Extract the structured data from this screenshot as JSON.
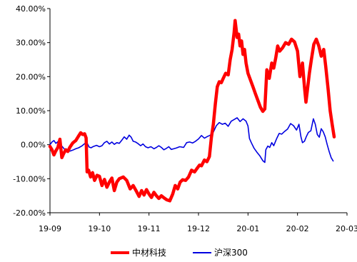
{
  "chart_data": {
    "type": "line",
    "yaxis": {
      "min": -20,
      "max": 40,
      "ticks": [
        40,
        30,
        20,
        10,
        0,
        -10,
        -20
      ],
      "tick_labels": [
        "40.00%",
        "30.00%",
        "20.00%",
        "10.00%",
        "0.00%",
        "-10.00%",
        "-20.00%"
      ]
    },
    "xaxis": {
      "ticks": [
        0,
        1,
        2,
        3,
        4,
        5,
        6
      ],
      "tick_labels": [
        "19-09",
        "19-10",
        "19-11",
        "19-12",
        "20-01",
        "20-02",
        "20-03"
      ]
    },
    "legend": {
      "position": "bottom-center"
    },
    "colors": {
      "series_1": "#ff0000",
      "series_2": "#0000e0",
      "axis": "#000000"
    },
    "series": [
      {
        "name": "中材科技",
        "color": "#ff0000",
        "points": [
          [
            0.0,
            -0.5
          ],
          [
            0.04,
            -1.5
          ],
          [
            0.08,
            -3.0
          ],
          [
            0.12,
            -1.8
          ],
          [
            0.16,
            -0.8
          ],
          [
            0.2,
            1.6
          ],
          [
            0.24,
            -3.8
          ],
          [
            0.28,
            -2.5
          ],
          [
            0.32,
            -1.5
          ],
          [
            0.36,
            -2.0
          ],
          [
            0.4,
            -0.8
          ],
          [
            0.46,
            0.5
          ],
          [
            0.52,
            1.2
          ],
          [
            0.58,
            2.6
          ],
          [
            0.62,
            3.5
          ],
          [
            0.66,
            3.0
          ],
          [
            0.7,
            3.2
          ],
          [
            0.73,
            2.0
          ],
          [
            0.75,
            -8.0
          ],
          [
            0.78,
            -7.5
          ],
          [
            0.82,
            -9.5
          ],
          [
            0.86,
            -8.2
          ],
          [
            0.9,
            -10.5
          ],
          [
            0.95,
            -9.0
          ],
          [
            1.0,
            -9.3
          ],
          [
            1.05,
            -12.0
          ],
          [
            1.1,
            -10.2
          ],
          [
            1.15,
            -12.5
          ],
          [
            1.2,
            -11.0
          ],
          [
            1.25,
            -9.8
          ],
          [
            1.3,
            -13.5
          ],
          [
            1.35,
            -11.0
          ],
          [
            1.4,
            -10.0
          ],
          [
            1.48,
            -9.5
          ],
          [
            1.55,
            -10.5
          ],
          [
            1.62,
            -13.0
          ],
          [
            1.68,
            -12.0
          ],
          [
            1.75,
            -13.8
          ],
          [
            1.8,
            -15.2
          ],
          [
            1.85,
            -13.5
          ],
          [
            1.9,
            -14.8
          ],
          [
            1.95,
            -13.2
          ],
          [
            2.0,
            -14.5
          ],
          [
            2.05,
            -15.5
          ],
          [
            2.1,
            -14.0
          ],
          [
            2.15,
            -15.0
          ],
          [
            2.2,
            -15.8
          ],
          [
            2.25,
            -15.0
          ],
          [
            2.3,
            -15.6
          ],
          [
            2.36,
            -16.2
          ],
          [
            2.42,
            -16.5
          ],
          [
            2.48,
            -14.5
          ],
          [
            2.53,
            -12.0
          ],
          [
            2.58,
            -13.0
          ],
          [
            2.63,
            -11.0
          ],
          [
            2.68,
            -10.3
          ],
          [
            2.74,
            -10.5
          ],
          [
            2.8,
            -9.5
          ],
          [
            2.86,
            -7.5
          ],
          [
            2.92,
            -8.0
          ],
          [
            2.97,
            -7.0
          ],
          [
            3.02,
            -6.0
          ],
          [
            3.06,
            -6.2
          ],
          [
            3.12,
            -4.5
          ],
          [
            3.17,
            -5.0
          ],
          [
            3.22,
            -3.5
          ],
          [
            3.26,
            2.0
          ],
          [
            3.3,
            6.0
          ],
          [
            3.34,
            12.0
          ],
          [
            3.38,
            17.0
          ],
          [
            3.42,
            18.5
          ],
          [
            3.46,
            18.2
          ],
          [
            3.5,
            19.5
          ],
          [
            3.55,
            21.0
          ],
          [
            3.6,
            20.5
          ],
          [
            3.64,
            25.0
          ],
          [
            3.68,
            28.0
          ],
          [
            3.72,
            33.0
          ],
          [
            3.74,
            36.5
          ],
          [
            3.76,
            34.0
          ],
          [
            3.78,
            31.5
          ],
          [
            3.81,
            32.5
          ],
          [
            3.84,
            29.0
          ],
          [
            3.87,
            30.5
          ],
          [
            3.9,
            26.5
          ],
          [
            3.93,
            28.0
          ],
          [
            3.96,
            24.0
          ],
          [
            4.0,
            21.0
          ],
          [
            4.05,
            19.0
          ],
          [
            4.1,
            17.0
          ],
          [
            4.15,
            15.0
          ],
          [
            4.2,
            13.0
          ],
          [
            4.25,
            11.0
          ],
          [
            4.3,
            9.8
          ],
          [
            4.34,
            10.5
          ],
          [
            4.38,
            22.0
          ],
          [
            4.43,
            19.5
          ],
          [
            4.48,
            24.0
          ],
          [
            4.52,
            22.5
          ],
          [
            4.56,
            25.5
          ],
          [
            4.6,
            29.0
          ],
          [
            4.64,
            27.5
          ],
          [
            4.7,
            28.5
          ],
          [
            4.76,
            30.0
          ],
          [
            4.82,
            29.5
          ],
          [
            4.88,
            31.0
          ],
          [
            4.94,
            30.2
          ],
          [
            5.0,
            27.5
          ],
          [
            5.05,
            20.0
          ],
          [
            5.1,
            24.0
          ],
          [
            5.14,
            17.0
          ],
          [
            5.17,
            12.5
          ],
          [
            5.2,
            16.0
          ],
          [
            5.24,
            21.0
          ],
          [
            5.28,
            25.0
          ],
          [
            5.33,
            29.5
          ],
          [
            5.38,
            31.0
          ],
          [
            5.43,
            29.0
          ],
          [
            5.48,
            26.0
          ],
          [
            5.53,
            28.0
          ],
          [
            5.57,
            23.0
          ],
          [
            5.62,
            16.0
          ],
          [
            5.66,
            10.0
          ],
          [
            5.7,
            6.0
          ],
          [
            5.74,
            2.3
          ]
        ]
      },
      {
        "name": "沪深300",
        "color": "#0000e0",
        "points": [
          [
            0.0,
            0.0
          ],
          [
            0.04,
            0.8
          ],
          [
            0.08,
            1.2
          ],
          [
            0.12,
            0.4
          ],
          [
            0.16,
            0.9
          ],
          [
            0.2,
            0.0
          ],
          [
            0.24,
            -0.4
          ],
          [
            0.28,
            -1.1
          ],
          [
            0.32,
            -1.7
          ],
          [
            0.36,
            -1.4
          ],
          [
            0.4,
            -1.9
          ],
          [
            0.46,
            -1.6
          ],
          [
            0.52,
            -1.2
          ],
          [
            0.58,
            -0.9
          ],
          [
            0.64,
            -0.4
          ],
          [
            0.7,
            0.3
          ],
          [
            0.75,
            0.5
          ],
          [
            0.79,
            -0.7
          ],
          [
            0.83,
            -0.9
          ],
          [
            0.88,
            -0.5
          ],
          [
            0.94,
            -0.2
          ],
          [
            1.0,
            -0.6
          ],
          [
            1.05,
            -0.3
          ],
          [
            1.1,
            0.6
          ],
          [
            1.15,
            1.0
          ],
          [
            1.2,
            0.2
          ],
          [
            1.25,
            0.8
          ],
          [
            1.3,
            0.1
          ],
          [
            1.35,
            0.6
          ],
          [
            1.4,
            0.4
          ],
          [
            1.45,
            1.3
          ],
          [
            1.5,
            2.3
          ],
          [
            1.55,
            1.6
          ],
          [
            1.6,
            2.8
          ],
          [
            1.64,
            2.2
          ],
          [
            1.68,
            1.0
          ],
          [
            1.73,
            0.8
          ],
          [
            1.78,
            0.3
          ],
          [
            1.83,
            -0.3
          ],
          [
            1.88,
            0.2
          ],
          [
            1.93,
            -0.6
          ],
          [
            1.98,
            -0.9
          ],
          [
            2.04,
            -0.6
          ],
          [
            2.1,
            -1.2
          ],
          [
            2.15,
            -0.8
          ],
          [
            2.2,
            -0.3
          ],
          [
            2.25,
            -0.8
          ],
          [
            2.3,
            -1.5
          ],
          [
            2.35,
            -1.1
          ],
          [
            2.4,
            -0.6
          ],
          [
            2.45,
            -1.4
          ],
          [
            2.5,
            -1.2
          ],
          [
            2.55,
            -1.0
          ],
          [
            2.62,
            -0.6
          ],
          [
            2.7,
            -0.8
          ],
          [
            2.76,
            0.6
          ],
          [
            2.82,
            0.8
          ],
          [
            2.88,
            0.5
          ],
          [
            2.94,
            1.0
          ],
          [
            3.0,
            1.7
          ],
          [
            3.06,
            2.7
          ],
          [
            3.12,
            1.9
          ],
          [
            3.18,
            2.4
          ],
          [
            3.24,
            2.8
          ],
          [
            3.3,
            3.7
          ],
          [
            3.36,
            5.6
          ],
          [
            3.42,
            6.5
          ],
          [
            3.48,
            6.0
          ],
          [
            3.54,
            6.3
          ],
          [
            3.6,
            5.4
          ],
          [
            3.66,
            6.9
          ],
          [
            3.72,
            7.4
          ],
          [
            3.78,
            7.9
          ],
          [
            3.84,
            6.8
          ],
          [
            3.9,
            7.6
          ],
          [
            3.96,
            6.9
          ],
          [
            4.0,
            5.5
          ],
          [
            4.03,
            1.8
          ],
          [
            4.07,
            0.5
          ],
          [
            4.12,
            -1.0
          ],
          [
            4.18,
            -2.2
          ],
          [
            4.24,
            -3.3
          ],
          [
            4.3,
            -4.7
          ],
          [
            4.34,
            -5.2
          ],
          [
            4.36,
            -1.5
          ],
          [
            4.4,
            -0.4
          ],
          [
            4.44,
            -0.8
          ],
          [
            4.48,
            0.6
          ],
          [
            4.52,
            -0.3
          ],
          [
            4.58,
            1.8
          ],
          [
            4.63,
            3.3
          ],
          [
            4.68,
            3.1
          ],
          [
            4.74,
            3.9
          ],
          [
            4.8,
            4.6
          ],
          [
            4.86,
            6.2
          ],
          [
            4.92,
            5.6
          ],
          [
            4.98,
            4.3
          ],
          [
            5.03,
            6.0
          ],
          [
            5.07,
            2.3
          ],
          [
            5.1,
            0.6
          ],
          [
            5.14,
            1.0
          ],
          [
            5.18,
            2.4
          ],
          [
            5.22,
            3.6
          ],
          [
            5.27,
            4.1
          ],
          [
            5.32,
            7.6
          ],
          [
            5.36,
            6.0
          ],
          [
            5.4,
            3.0
          ],
          [
            5.44,
            2.2
          ],
          [
            5.48,
            4.7
          ],
          [
            5.52,
            3.8
          ],
          [
            5.56,
            2.3
          ],
          [
            5.6,
            0.0
          ],
          [
            5.64,
            -2.0
          ],
          [
            5.68,
            -3.8
          ],
          [
            5.72,
            -4.8
          ]
        ]
      }
    ]
  }
}
